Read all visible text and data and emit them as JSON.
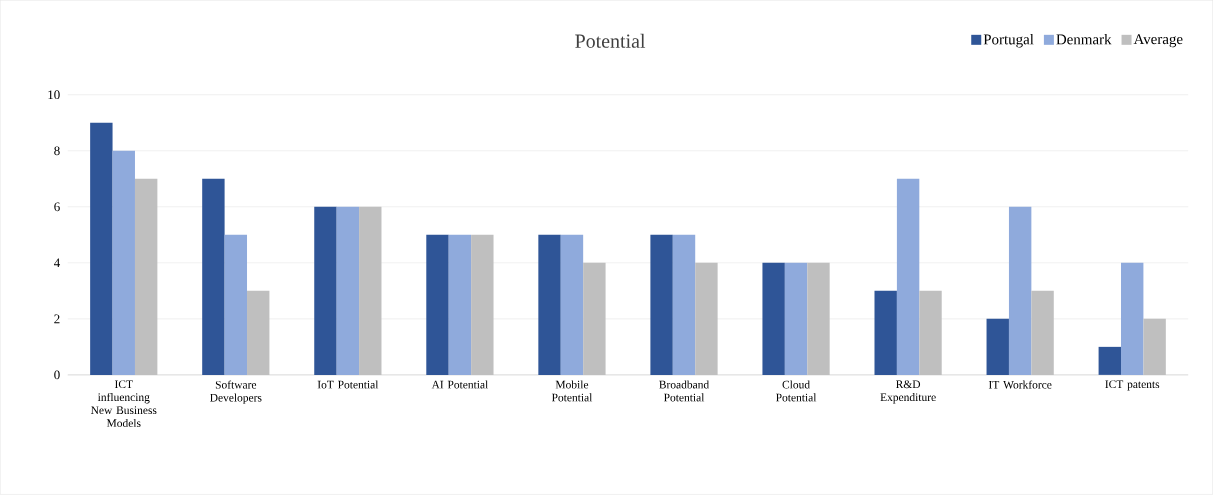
{
  "chart_data": {
    "type": "bar",
    "title": "Potential",
    "categories": [
      "ICT influencing New Business Models",
      "Software Developers",
      "IoT Potential",
      "AI Potential",
      "Mobile Potential",
      "Broadband Potential",
      "Cloud Potential",
      "R&D Expenditure",
      "IT Workforce",
      "ICT patents"
    ],
    "series": [
      {
        "name": "Portugal",
        "color": "#2f5597",
        "values": [
          9,
          7,
          6,
          5,
          5,
          5,
          4,
          3,
          2,
          1
        ]
      },
      {
        "name": "Denmark",
        "color": "#8faadc",
        "values": [
          8,
          5,
          6,
          5,
          5,
          5,
          4,
          7,
          6,
          4
        ]
      },
      {
        "name": "Average",
        "color": "#bfbfbf",
        "values": [
          7,
          3,
          6,
          5,
          4,
          4,
          4,
          3,
          3,
          2
        ]
      }
    ],
    "ylim": [
      0,
      10
    ],
    "yticks": [
      0,
      2,
      4,
      6,
      8,
      10
    ],
    "grid": "y",
    "legend": "top right"
  }
}
